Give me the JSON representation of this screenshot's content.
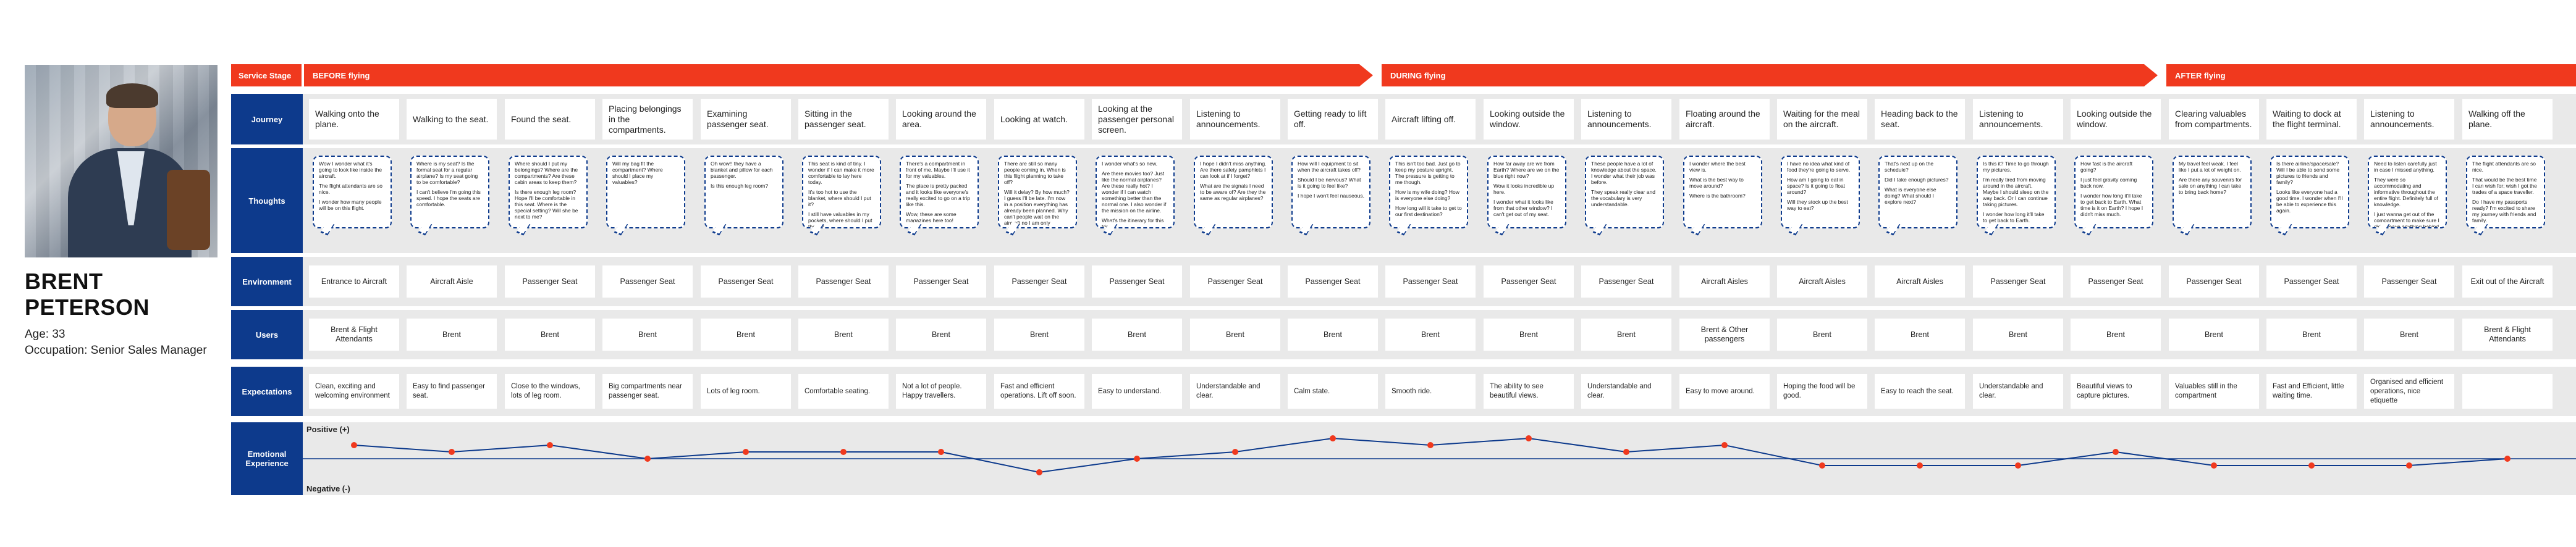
{
  "persona": {
    "name": "BRENT PETERSON",
    "age": "Age: 33",
    "occupation": "Occupation: Senior Sales Manager"
  },
  "stage_label": "Service Stage",
  "stages": [
    {
      "label": "BEFORE flying"
    },
    {
      "label": "DURING flying"
    },
    {
      "label": "AFTER flying"
    }
  ],
  "row_labels": {
    "journey": "Journey",
    "thoughts": "Thoughts",
    "environment": "Environment",
    "users": "Users",
    "expectations": "Expectations",
    "emotional": "Emotional Experience"
  },
  "axis": {
    "positive": "Positive (+)",
    "negative": "Negative (-)"
  },
  "columns": [
    {
      "journey": "Walking onto the plane.",
      "thought": [
        "Wow I wonder what it's going to look like inside the aircraft.",
        "The flight attendants are so nice.",
        "I wonder how many people will be on this flight."
      ],
      "environment": "Entrance to Aircraft",
      "users": "Brent & Flight Attendants",
      "expectations": "Clean, exciting and welcoming environment",
      "emotion": 2
    },
    {
      "journey": "Walking to the seat.",
      "thought": [
        "Where is my seat? Is the formal seat for a regular airplane? Is my seat going to be comfortable?",
        "I can't believe I'm going this speed. I hope the seats are comfortable."
      ],
      "environment": "Aircraft Aisle",
      "users": "Brent",
      "expectations": "Easy to find passenger seat.",
      "emotion": 1
    },
    {
      "journey": "Found the seat.",
      "thought": [
        "Where should I put my belongings? Where are the compartments? Are these cabin areas to keep them?",
        "Is there enough leg room? Hope I'll be comfortable in this seat. Where is the special setting? Will she be next to me?"
      ],
      "environment": "Passenger Seat",
      "users": "Brent",
      "expectations": "Close to the windows, lots of leg room.",
      "emotion": 2
    },
    {
      "journey": "Placing belongings in the compartments.",
      "thought": [
        "Will my bag fit the compartment? Where should I place my valuables?"
      ],
      "environment": "Passenger Seat",
      "users": "Brent",
      "expectations": "Big compartments near passenger seat.",
      "emotion": 0
    },
    {
      "journey": "Examining passenger seat.",
      "thought": [
        "Oh wow!! they have a blanket and pillow for each passenger.",
        "Is this enough leg room?"
      ],
      "environment": "Passenger Seat",
      "users": "Brent",
      "expectations": "Lots of leg room.",
      "emotion": 1
    },
    {
      "journey": "Sitting in the passenger seat.",
      "thought": [
        "This seat is kind of tiny. I wonder if I can make it more comfortable to lay here today.",
        "It's too hot to use the blanket, where should I put it?",
        "I still have valuables in my pockets, where should I put these?"
      ],
      "environment": "Passenger Seat",
      "users": "Brent",
      "expectations": "Comfortable seating.",
      "emotion": 1
    },
    {
      "journey": "Looking around the area.",
      "thought": [
        "There's a compartment in front of me. Maybe I'll use it for my valuables.",
        "The place is pretty packed and it looks like everyone's really excited to go on a trip like this.",
        "Wow, these are some magazines here too!",
        "Where are the travel attendants?"
      ],
      "environment": "Passenger Seat",
      "users": "Brent",
      "expectations": "Not a lot of people. Happy travellers.",
      "emotion": 1
    },
    {
      "journey": "Looking at watch.",
      "thought": [
        "There are still so many people coming in. When is this flight planning to take off?",
        "Will it delay? By how much? I guess I'll be late. I'm now in a position everything has already been planned. Why can't people wait on the aircraft no I am only available at a given time? I need to have a full meeting. I'll see if this is a pretty much plan ahead?"
      ],
      "environment": "Passenger Seat",
      "users": "Brent",
      "expectations": "Fast and efficient operations. Lift off soon.",
      "emotion": -2
    },
    {
      "journey": "Looking at the passenger personal screen.",
      "thought": [
        "I wonder what's so new.",
        "Are there movies too? Just like the normal airplanes? Are these really hot? I wonder if I can watch something better than the normal one. I also wonder if the mission on the airline.",
        "What's the itinerary for this trip?"
      ],
      "environment": "Passenger Seat",
      "users": "Brent",
      "expectations": "Easy to understand.",
      "emotion": 0
    },
    {
      "journey": "Listening to announcements.",
      "thought": [
        "I hope I didn't miss anything. Are there safety pamphlets I can look at if I forget?",
        "What are the signals I need to be aware of? Are they the same as regular airplanes?"
      ],
      "environment": "Passenger Seat",
      "users": "Brent",
      "expectations": "Understandable and clear.",
      "emotion": 1
    },
    {
      "journey": "Getting ready to lift off.",
      "thought": [
        "How will I equipment to sit when the aircraft takes off?",
        "Should I be nervous? What is it going to feel like?",
        "I hope I won't feel nauseous."
      ],
      "environment": "Passenger Seat",
      "users": "Brent",
      "expectations": "Calm state.",
      "emotion": 3
    },
    {
      "journey": "Aircraft lifting off.",
      "thought": [
        "This isn't too bad. Just go to keep my posture upright. The pressure is getting to me though.",
        "How is my wife doing? How is everyone else doing?",
        "How long will it take to get to our first destination?"
      ],
      "environment": "Passenger Seat",
      "users": "Brent",
      "expectations": "Smooth ride.",
      "emotion": 2
    },
    {
      "journey": "Looking outside the window.",
      "thought": [
        "How far away are we from Earth? Where are we on the blue right now?",
        "Wow it looks incredible up here.",
        "I wonder what it looks like from that other window? I can't get out of my seat."
      ],
      "environment": "Passenger Seat",
      "users": "Brent",
      "expectations": "The ability to see beautiful views.",
      "emotion": 3
    },
    {
      "journey": "Listening to announcements.",
      "thought": [
        "These people have a lot of knowledge about the space. I wonder what their job was before.",
        "They speak really clear and the vocabulary is very understandable."
      ],
      "environment": "Passenger Seat",
      "users": "Brent",
      "expectations": "Understandable and clear.",
      "emotion": 1
    },
    {
      "journey": "Floating around the aircraft.",
      "thought": [
        "I wonder where the best view is.",
        "What is the best way to move around?",
        "Where is the bathroom?"
      ],
      "environment": "Aircraft Aisles",
      "users": "Brent & Other passengers",
      "expectations": "Easy to move around.",
      "emotion": 2
    },
    {
      "journey": "Waiting for the meal on the aircraft.",
      "thought": [
        "I have no idea what kind of food they're going to serve.",
        "How am I going to eat in space? Is it going to float around?",
        "Will they stock up the best way to eat?"
      ],
      "environment": "Aircraft Aisles",
      "users": "Brent",
      "expectations": "Hoping the food will be good.",
      "emotion": -1
    },
    {
      "journey": "Heading back to the seat.",
      "thought": [
        "That's next up on the schedule?",
        "Did I take enough pictures?",
        "What is everyone else doing? What should I explore next?"
      ],
      "environment": "Aircraft Aisles",
      "users": "Brent",
      "expectations": "Easy to reach the seat.",
      "emotion": -1
    },
    {
      "journey": "Listening to announcements.",
      "thought": [
        "Is this it? Time to go through my pictures.",
        "I'm really tired from moving around in the aircraft. Maybe I should sleep on the way back. Or I can continue taking pictures.",
        "I wonder how long it'll take to get back to Earth."
      ],
      "environment": "Passenger Seat",
      "users": "Brent",
      "expectations": "Understandable and clear.",
      "emotion": -1
    },
    {
      "journey": "Looking outside the window.",
      "thought": [
        "How fast is the aircraft going?",
        "I just feel gravity coming back now.",
        "I wonder how long it'll take to get back to Earth. What time is it on Earth? I hope I didn't miss much."
      ],
      "environment": "Passenger Seat",
      "users": "Brent",
      "expectations": "Beautiful views to capture pictures.",
      "emotion": 1
    },
    {
      "journey": "Clearing valuables from compartments.",
      "thought": [
        "My travel feel weak. I feel like I put a lot of weight on.",
        "Are there any souvenirs for sale on anything I can take to bring back home?"
      ],
      "environment": "Passenger Seat",
      "users": "Brent",
      "expectations": "Valuables still in the compartment",
      "emotion": -1
    },
    {
      "journey": "Waiting to dock at the flight terminal.",
      "thought": [
        "Is there airline/space/sale? Will I be able to send some pictures to friends and family?",
        "Looks like everyone had a good time. I wonder when I'll be able to experience this again."
      ],
      "environment": "Passenger Seat",
      "users": "Brent",
      "expectations": "Fast and Efficient, little waiting time.",
      "emotion": -1
    },
    {
      "journey": "Listening to announcements.",
      "thought": [
        "Need to listen carefully just in case I missed anything.",
        "They were so accommodating and informative throughout the entire flight. Definitely full of knowledge.",
        "I just wanna get out of the compartment to make sure I didn't leave anything behind."
      ],
      "environment": "Passenger Seat",
      "users": "Brent",
      "expectations": "Organised and efficient operations, nice etiquette",
      "emotion": -1
    },
    {
      "journey": "Walking off the plane.",
      "thought": [
        "The flight attendants are so nice.",
        "That would be the best time I can wish for; wish I got the trades of a space traveller.",
        "Do I have my passports ready? I'm excited to share my journey with friends and family."
      ],
      "environment": "Exit out of the Aircraft",
      "users": "Brent & Flight Attendants",
      "expectations": "",
      "emotion": 0
    }
  ]
}
